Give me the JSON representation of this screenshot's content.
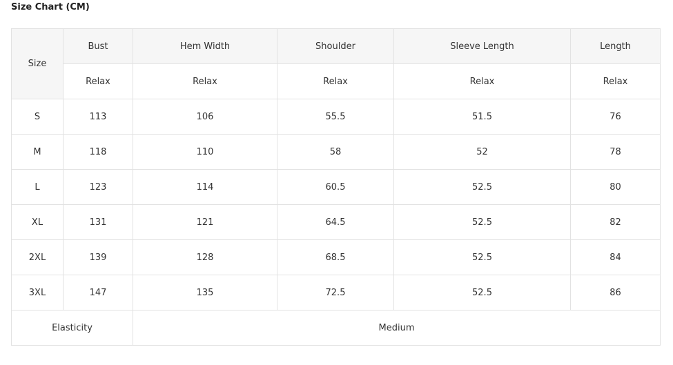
{
  "title": "Size Chart (CM)",
  "header": {
    "size_label": "Size",
    "columns": [
      "Bust",
      "Hem Width",
      "Shoulder",
      "Sleeve Length",
      "Length"
    ],
    "fit": [
      "Relax",
      "Relax",
      "Relax",
      "Relax",
      "Relax"
    ]
  },
  "rows": [
    {
      "size": "S",
      "values": [
        "113",
        "106",
        "55.5",
        "51.5",
        "76"
      ]
    },
    {
      "size": "M",
      "values": [
        "118",
        "110",
        "58",
        "52",
        "78"
      ]
    },
    {
      "size": "L",
      "values": [
        "123",
        "114",
        "60.5",
        "52.5",
        "80"
      ]
    },
    {
      "size": "XL",
      "values": [
        "131",
        "121",
        "64.5",
        "52.5",
        "82"
      ]
    },
    {
      "size": "2XL",
      "values": [
        "139",
        "128",
        "68.5",
        "52.5",
        "84"
      ]
    },
    {
      "size": "3XL",
      "values": [
        "147",
        "135",
        "72.5",
        "52.5",
        "86"
      ]
    }
  ],
  "footer": {
    "label": "Elasticity",
    "value": "Medium"
  }
}
